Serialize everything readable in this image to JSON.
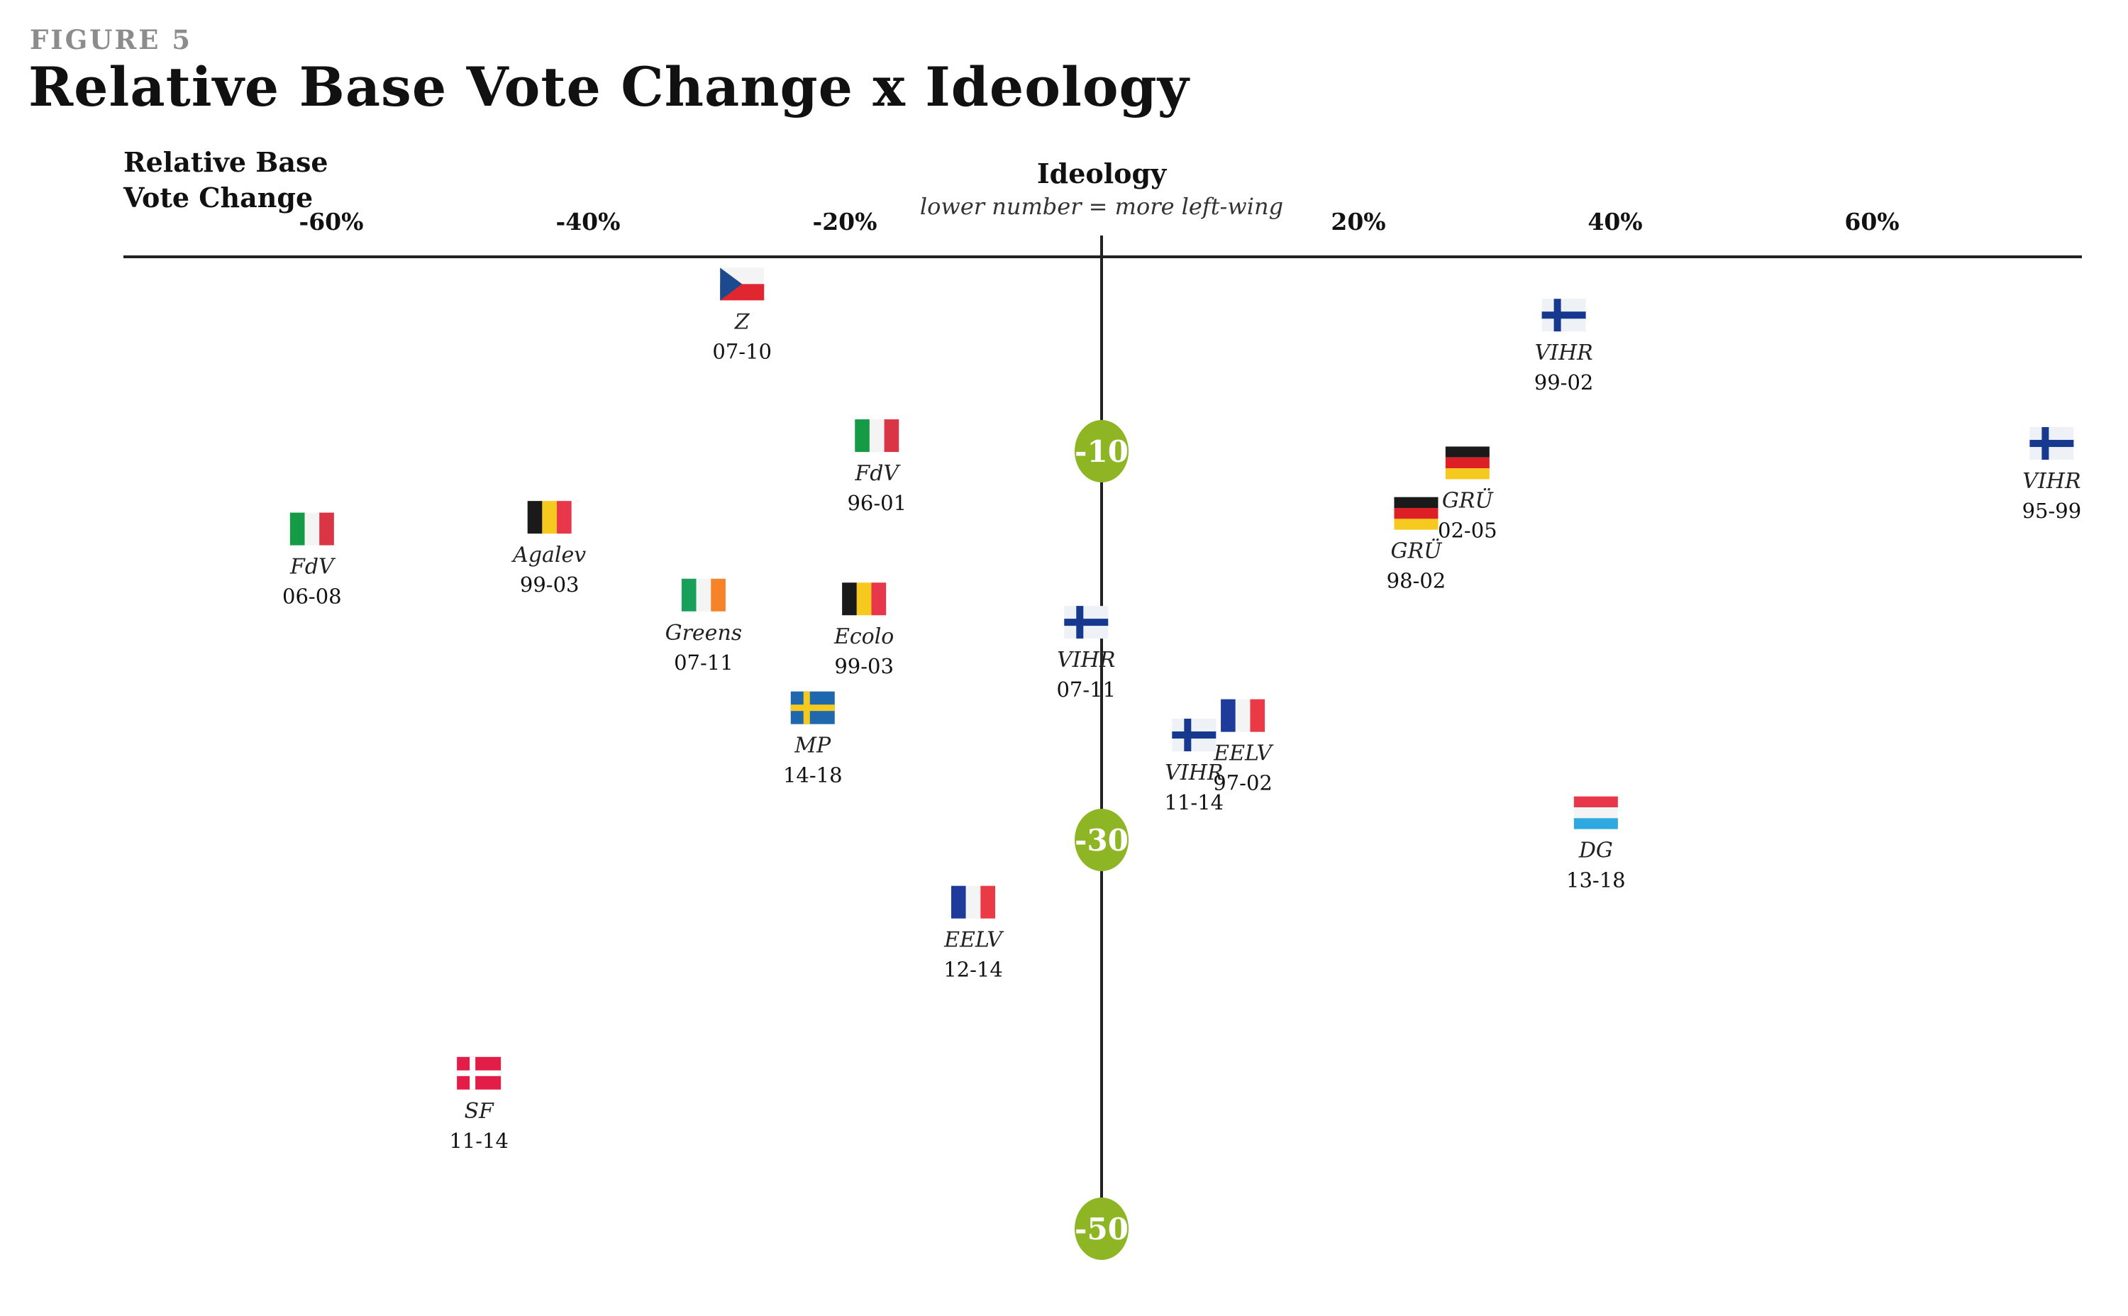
{
  "figure_label": "FIGURE 5",
  "title": "Relative Base Vote Change x Ideology",
  "y_axis_label": "Relative Base Vote Change",
  "colors": {
    "axis": "#222222",
    "y_tick_marker": "#8db524",
    "figure_label": "#8c8c8c"
  },
  "chart_data": {
    "type": "scatter",
    "title": "Relative Base Vote Change x Ideology",
    "xlabel": "Ideology",
    "xlabel_subtitle": "lower number = more left-wing",
    "ylabel": "Relative Base Vote Change",
    "x_ticks": [
      {
        "value": -60,
        "label": "-60%"
      },
      {
        "value": -40,
        "label": "-40%"
      },
      {
        "value": -20,
        "label": "-20%"
      },
      {
        "value": 20,
        "label": "20%"
      },
      {
        "value": 40,
        "label": "40%"
      },
      {
        "value": 60,
        "label": "60%"
      }
    ],
    "y_ticks": [
      {
        "value": -10,
        "label": "-10"
      },
      {
        "value": -30,
        "label": "-30"
      },
      {
        "value": -50,
        "label": "-50"
      }
    ],
    "xlim": [
      -78,
      77
    ],
    "ylim": [
      -55,
      2
    ],
    "grid": false,
    "points": [
      {
        "party": "Z",
        "years": "07-10",
        "country": "CZ",
        "x": -28,
        "y": -1.4
      },
      {
        "party": "VIHR",
        "years": "99-02",
        "country": "FI",
        "x": 36,
        "y": -3
      },
      {
        "party": "FdV",
        "years": "96-01",
        "country": "IT",
        "x": -17.5,
        "y": -9.2
      },
      {
        "party": "GRÜ",
        "years": "02-05",
        "country": "DE",
        "x": 28.5,
        "y": -10.6
      },
      {
        "party": "VIHR",
        "years": "95-99",
        "country": "FI",
        "x": 74,
        "y": -9.6
      },
      {
        "party": "FdV",
        "years": "06-08",
        "country": "IT",
        "x": -61.5,
        "y": -14
      },
      {
        "party": "Agalev",
        "years": "99-03",
        "country": "BE",
        "x": -43,
        "y": -13.4
      },
      {
        "party": "GRÜ",
        "years": "98-02",
        "country": "DE",
        "x": 24.5,
        "y": -13.2
      },
      {
        "party": "Greens",
        "years": "07-11",
        "country": "IE",
        "x": -31,
        "y": -17.4
      },
      {
        "party": "Ecolo",
        "years": "99-03",
        "country": "BE",
        "x": -18.5,
        "y": -17.6
      },
      {
        "party": "VIHR",
        "years": "07-11",
        "country": "FI",
        "x": -1.2,
        "y": -18.8
      },
      {
        "party": "MP",
        "years": "14-18",
        "country": "SE",
        "x": -22.5,
        "y": -23.2
      },
      {
        "party": "VIHR",
        "years": "11-14",
        "country": "FI",
        "x": 7.2,
        "y": -24.6
      },
      {
        "party": "EELV",
        "years": "97-02",
        "country": "FR",
        "x": 11,
        "y": -23.6
      },
      {
        "party": "DG",
        "years": "13-18",
        "country": "LU",
        "x": 38.5,
        "y": -28.6
      },
      {
        "party": "EELV",
        "years": "12-14",
        "country": "FR",
        "x": -10,
        "y": -33.2
      },
      {
        "party": "SF",
        "years": "11-14",
        "country": "DK",
        "x": -48.5,
        "y": -42
      }
    ]
  }
}
